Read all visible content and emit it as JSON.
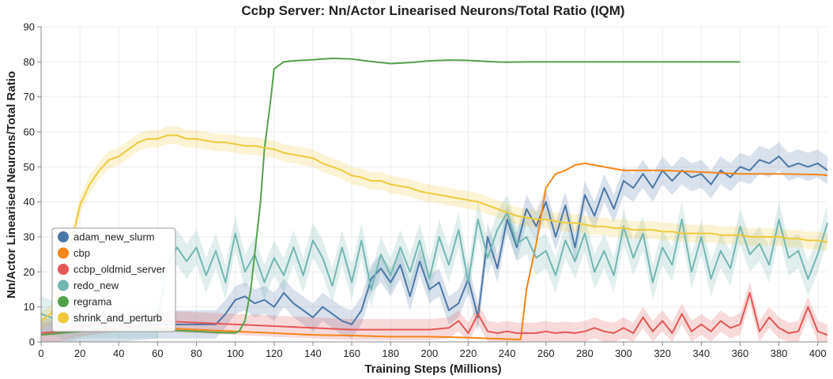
{
  "chart_data": {
    "type": "line",
    "title": "Ccbp Server: Nn/Actor Linearised Neurons/Total Ratio (IQM)",
    "xlabel": "Training Steps (Millions)",
    "ylabel": "Nn/Actor Linearised Neurons/Total Ratio",
    "xlim": [
      0,
      405
    ],
    "ylim": [
      0,
      90
    ],
    "x_ticks": [
      "0",
      "20",
      "40",
      "60",
      "80",
      "100",
      "120",
      "140",
      "160",
      "180",
      "200",
      "220",
      "240",
      "260",
      "280",
      "300",
      "320",
      "340",
      "360",
      "380",
      "400"
    ],
    "y_ticks": [
      "0",
      "10",
      "20",
      "30",
      "40",
      "50",
      "60",
      "70",
      "80",
      "90"
    ],
    "grid": true,
    "legend_position": "bottom-left",
    "series": [
      {
        "name": "adam_new_slurm",
        "color": "#4c78a8",
        "band": 4,
        "x": [
          0,
          10,
          20,
          40,
          60,
          80,
          90,
          95,
          100,
          105,
          110,
          115,
          120,
          125,
          130,
          135,
          140,
          145,
          150,
          155,
          160,
          165,
          170,
          175,
          180,
          185,
          190,
          195,
          200,
          205,
          210,
          215,
          220,
          225,
          230,
          235,
          240,
          245,
          250,
          255,
          260,
          265,
          270,
          275,
          280,
          285,
          290,
          295,
          300,
          305,
          310,
          315,
          320,
          325,
          330,
          335,
          340,
          345,
          350,
          355,
          360,
          365,
          370,
          375,
          380,
          385,
          390,
          395,
          400,
          405
        ],
        "y": [
          2.5,
          3,
          3.5,
          4,
          5,
          5,
          5,
          8,
          12,
          13,
          11,
          12,
          10,
          14,
          11,
          9,
          7,
          10,
          8,
          6,
          5,
          9,
          18,
          21,
          17,
          22,
          13,
          23,
          15,
          17,
          9,
          11,
          18,
          7,
          30,
          21,
          35,
          27,
          38,
          33,
          40,
          30,
          39,
          27,
          42,
          36,
          44,
          38,
          46,
          44,
          48,
          44,
          49,
          46,
          49,
          47,
          48,
          45,
          49,
          47,
          50,
          49,
          52,
          51,
          53,
          50,
          51,
          50,
          51,
          49
        ]
      },
      {
        "name": "cbp",
        "color": "#f58518",
        "band": 0,
        "x": [
          0,
          10,
          20,
          40,
          60,
          80,
          100,
          120,
          140,
          160,
          180,
          200,
          220,
          240,
          247,
          250,
          255,
          260,
          265,
          270,
          275,
          280,
          290,
          300,
          320,
          340,
          360,
          380,
          400,
          405
        ],
        "y": [
          2,
          2.5,
          3,
          4,
          4,
          3.5,
          3,
          2.5,
          2,
          1.8,
          1.5,
          1.5,
          1.2,
          0.8,
          0.7,
          15,
          28,
          44,
          48,
          49,
          50.5,
          51,
          50,
          49,
          49,
          48.5,
          48,
          48,
          47.8,
          47.6
        ]
      },
      {
        "name": "ccbp_oldmid_server",
        "color": "#e45756",
        "band": 3,
        "x": [
          0,
          10,
          20,
          40,
          60,
          80,
          100,
          120,
          140,
          160,
          180,
          200,
          210,
          215,
          220,
          225,
          230,
          235,
          240,
          245,
          250,
          255,
          260,
          265,
          270,
          275,
          280,
          285,
          290,
          295,
          300,
          305,
          310,
          315,
          320,
          325,
          330,
          335,
          340,
          345,
          350,
          355,
          360,
          365,
          370,
          375,
          380,
          385,
          390,
          395,
          400,
          405
        ],
        "y": [
          2.5,
          3,
          4.5,
          6,
          6,
          5.5,
          5,
          4.5,
          4,
          3.5,
          3.5,
          3.5,
          4,
          6,
          2.5,
          8,
          3,
          2.5,
          3,
          2.5,
          2.5,
          2.5,
          3,
          2.5,
          2.8,
          2.5,
          3,
          4,
          3,
          2.5,
          4,
          2.5,
          7,
          3,
          6,
          2.5,
          8,
          3,
          5,
          3,
          6,
          4,
          5,
          14,
          3,
          7,
          4,
          2.5,
          3,
          10,
          3,
          2
        ]
      },
      {
        "name": "redo_new",
        "color": "#72b7b2",
        "band": 5,
        "x": [
          0,
          5,
          10,
          15,
          20,
          25,
          30,
          35,
          40,
          45,
          50,
          55,
          60,
          65,
          70,
          75,
          80,
          85,
          90,
          95,
          100,
          105,
          110,
          115,
          120,
          125,
          130,
          135,
          140,
          145,
          150,
          155,
          160,
          165,
          170,
          175,
          180,
          185,
          190,
          195,
          200,
          205,
          210,
          215,
          220,
          225,
          230,
          235,
          240,
          245,
          250,
          255,
          260,
          265,
          270,
          275,
          280,
          285,
          290,
          295,
          300,
          305,
          310,
          315,
          320,
          325,
          330,
          335,
          340,
          345,
          350,
          355,
          360,
          365,
          370,
          375,
          380,
          385,
          390,
          395,
          400,
          405
        ],
        "y": [
          8,
          7,
          6,
          5,
          6,
          6,
          6,
          6,
          6,
          6,
          6,
          6,
          6,
          22,
          27,
          23,
          27,
          19,
          26,
          17,
          31,
          20,
          25,
          17,
          24,
          19,
          27,
          19,
          29,
          24,
          16,
          27,
          17,
          29,
          15,
          25,
          19,
          27,
          20,
          29,
          18,
          30,
          22,
          32,
          17,
          35,
          24,
          32,
          37,
          28,
          30,
          24,
          26,
          19,
          29,
          23,
          31,
          20,
          26,
          19,
          33,
          24,
          31,
          17,
          27,
          22,
          35,
          20,
          30,
          18,
          26,
          21,
          33,
          25,
          28,
          22,
          35,
          24,
          26,
          18,
          25,
          34
        ]
      },
      {
        "name": "regrama",
        "color": "#54a24b",
        "band": 0,
        "x": [
          0,
          10,
          20,
          40,
          60,
          80,
          90,
          95,
          100,
          102,
          105,
          108,
          110,
          113,
          115,
          118,
          120,
          125,
          130,
          140,
          150,
          160,
          170,
          180,
          190,
          200,
          210,
          220,
          230,
          240,
          250,
          260,
          280,
          300,
          320,
          340,
          360
        ],
        "y": [
          2,
          2.5,
          3,
          3.5,
          3.5,
          3,
          2.7,
          2.6,
          2.6,
          3,
          6,
          15,
          25,
          40,
          55,
          68,
          78,
          80,
          80.3,
          80.6,
          81,
          80.8,
          80.1,
          79.5,
          79.8,
          80.3,
          80.5,
          80.4,
          80.1,
          79.9,
          80,
          80,
          80,
          80,
          80,
          80,
          80
        ]
      },
      {
        "name": "shrink_and_perturb",
        "color": "#eeca3b",
        "band": 2.5,
        "x": [
          0,
          5,
          10,
          15,
          20,
          25,
          30,
          35,
          40,
          45,
          50,
          55,
          60,
          65,
          70,
          75,
          80,
          85,
          90,
          95,
          100,
          105,
          110,
          115,
          120,
          125,
          130,
          135,
          140,
          145,
          150,
          155,
          160,
          165,
          170,
          175,
          180,
          185,
          190,
          195,
          200,
          205,
          210,
          215,
          220,
          225,
          230,
          235,
          240,
          245,
          250,
          255,
          260,
          265,
          270,
          275,
          280,
          285,
          290,
          295,
          300,
          305,
          310,
          315,
          320,
          325,
          330,
          335,
          340,
          345,
          350,
          355,
          360,
          365,
          370,
          375,
          380,
          385,
          390,
          395,
          400,
          405
        ],
        "y": [
          6,
          8,
          15,
          27,
          39,
          45,
          49,
          52,
          53,
          55,
          57,
          58,
          58,
          59,
          59,
          58,
          58,
          57.5,
          57,
          57,
          56.5,
          56,
          56,
          55.5,
          55,
          54,
          53.5,
          53,
          52.5,
          51,
          50,
          49,
          47.5,
          47,
          46,
          46,
          45,
          44.5,
          44,
          43,
          42.5,
          42,
          41.5,
          41,
          40.5,
          40,
          39,
          38,
          37,
          36,
          35.5,
          35,
          35,
          34.5,
          34,
          34,
          33.5,
          33,
          33,
          32.5,
          32.5,
          32,
          32,
          32,
          31.5,
          31.5,
          31,
          31,
          31,
          31,
          30.5,
          30.5,
          30.5,
          30,
          30,
          30,
          30,
          29.5,
          29.5,
          29,
          29,
          28.5
        ]
      }
    ]
  }
}
